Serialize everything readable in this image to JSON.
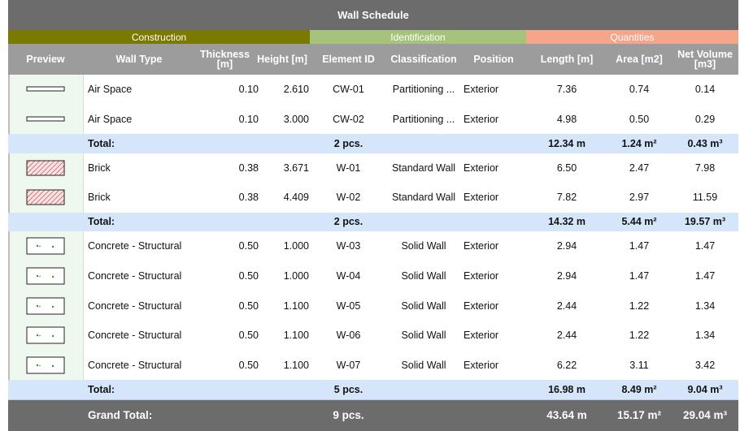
{
  "title": "Wall Schedule",
  "groups": {
    "construction": {
      "label": "Construction",
      "color": "#7a7a00"
    },
    "identification": {
      "label": "Identification",
      "color": "#a5c37a"
    },
    "quantities": {
      "label": "Quantities",
      "color": "#f4a58a"
    }
  },
  "columns": {
    "preview": "Preview",
    "wall_type": "Wall Type",
    "thickness": "Thickness [m]",
    "height": "Height [m]",
    "element_id": "Element ID",
    "classification": "Classification",
    "position": "Position",
    "length": "Length [m]",
    "area": "Area [m2]",
    "net_volume": "Net Volume [m3]"
  },
  "sections": [
    {
      "symbol": "air-space-icon",
      "rows": [
        {
          "wall_type": "Air Space",
          "thickness": "0.10",
          "height": "2.610",
          "element_id": "CW-01",
          "classification": "Partitioning ...",
          "position": "Exterior",
          "length": "7.36",
          "area": "0.74",
          "net_volume": "0.14"
        },
        {
          "wall_type": "Air Space",
          "thickness": "0.10",
          "height": "3.000",
          "element_id": "CW-02",
          "classification": "Partitioning ...",
          "position": "Exterior",
          "length": "4.98",
          "area": "0.50",
          "net_volume": "0.29"
        }
      ],
      "total": {
        "label": "Total:",
        "count": "2 pcs.",
        "length": "12.34 m",
        "area": "1.24 m²",
        "net_volume": "0.43 m³"
      }
    },
    {
      "symbol": "brick-hatch-icon",
      "rows": [
        {
          "wall_type": "Brick",
          "thickness": "0.38",
          "height": "3.671",
          "element_id": "W-01",
          "classification": "Standard Wall",
          "position": "Exterior",
          "length": "6.50",
          "area": "2.47",
          "net_volume": "7.98"
        },
        {
          "wall_type": "Brick",
          "thickness": "0.38",
          "height": "4.409",
          "element_id": "W-02",
          "classification": "Standard Wall",
          "position": "Exterior",
          "length": "7.82",
          "area": "2.97",
          "net_volume": "11.59"
        }
      ],
      "total": {
        "label": "Total:",
        "count": "2 pcs.",
        "length": "14.32 m",
        "area": "5.44 m²",
        "net_volume": "19.57 m³"
      }
    },
    {
      "symbol": "concrete-hatch-icon",
      "rows": [
        {
          "wall_type": "Concrete - Structural",
          "thickness": "0.50",
          "height": "1.000",
          "element_id": "W-03",
          "classification": "Solid Wall",
          "position": "Exterior",
          "length": "2.94",
          "area": "1.47",
          "net_volume": "1.47"
        },
        {
          "wall_type": "Concrete - Structural",
          "thickness": "0.50",
          "height": "1.000",
          "element_id": "W-04",
          "classification": "Solid Wall",
          "position": "Exterior",
          "length": "2.94",
          "area": "1.47",
          "net_volume": "1.47"
        },
        {
          "wall_type": "Concrete - Structural",
          "thickness": "0.50",
          "height": "1.100",
          "element_id": "W-05",
          "classification": "Solid Wall",
          "position": "Exterior",
          "length": "2.44",
          "area": "1.22",
          "net_volume": "1.34"
        },
        {
          "wall_type": "Concrete - Structural",
          "thickness": "0.50",
          "height": "1.100",
          "element_id": "W-06",
          "classification": "Solid Wall",
          "position": "Exterior",
          "length": "2.44",
          "area": "1.22",
          "net_volume": "1.34"
        },
        {
          "wall_type": "Concrete - Structural",
          "thickness": "0.50",
          "height": "1.100",
          "element_id": "W-07",
          "classification": "Solid Wall",
          "position": "Exterior",
          "length": "6.22",
          "area": "3.11",
          "net_volume": "3.42"
        }
      ],
      "total": {
        "label": "Total:",
        "count": "5 pcs.",
        "length": "16.98 m",
        "area": "8.49 m²",
        "net_volume": "9.04 m³"
      }
    }
  ],
  "grand_total": {
    "label": "Grand Total:",
    "count": "9 pcs.",
    "length": "43.64 m",
    "area": "15.17 m²",
    "net_volume": "29.04 m³"
  }
}
